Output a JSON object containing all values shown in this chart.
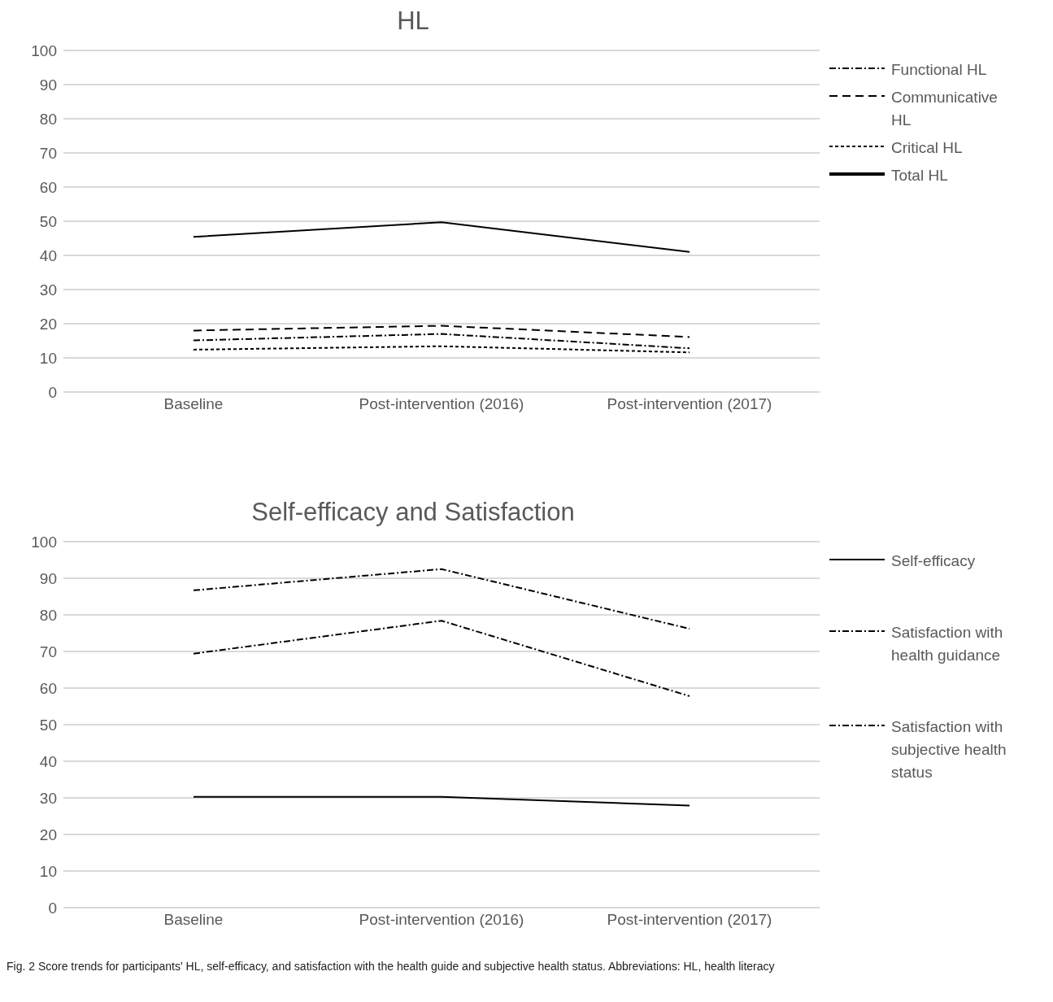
{
  "chart_data": [
    {
      "type": "line",
      "title": "HL",
      "categories": [
        "Baseline",
        "Post-intervention (2016)",
        "Post-intervention (2017)"
      ],
      "ylim": [
        0,
        100
      ],
      "yticks": [
        0,
        10,
        20,
        30,
        40,
        50,
        60,
        70,
        80,
        90,
        100
      ],
      "grid": "y",
      "legend": "right",
      "marker": "none",
      "series": [
        {
          "name": "Functional HL",
          "color": "#000000",
          "line_style": "dashdot",
          "values": [
            15.1,
            17.0,
            12.8
          ]
        },
        {
          "name": "Communicative HL",
          "color": "#000000",
          "line_style": "dashed",
          "values": [
            18.0,
            19.4,
            16.1
          ]
        },
        {
          "name": "Critical HL",
          "color": "#000000",
          "line_style": "dotted",
          "values": [
            12.4,
            13.4,
            11.6
          ]
        },
        {
          "name": "Total HL",
          "color": "#000000",
          "line_style": "solid",
          "values": [
            45.4,
            49.7,
            41.0
          ]
        }
      ]
    },
    {
      "type": "line",
      "title": "Self-efficacy and Satisfaction",
      "categories": [
        "Baseline",
        "Post-intervention (2016)",
        "Post-intervention (2017)"
      ],
      "ylim": [
        0,
        100
      ],
      "yticks": [
        0,
        10,
        20,
        30,
        40,
        50,
        60,
        70,
        80,
        90,
        100
      ],
      "grid": "y",
      "legend": "right",
      "marker": "none",
      "annotations": [
        "Fig. 2 Score trends for participants' HL, self-efficacy, and satisfaction with the health guide and subjective health status. Abbreviations: HL, health literacy"
      ],
      "series": [
        {
          "name": "Self-efficacy",
          "color": "#000000",
          "line_style": "solid",
          "values": [
            30.3,
            30.3,
            27.9
          ]
        },
        {
          "name": "Satisfaction with health guidance",
          "color": "#000000",
          "line_style": "dashdot",
          "values": [
            86.7,
            92.5,
            76.2
          ]
        },
        {
          "name": "Satisfaction with subjective health status",
          "color": "#000000",
          "line_style": "dashdot",
          "values": [
            69.4,
            78.4,
            57.8
          ]
        }
      ]
    }
  ]
}
